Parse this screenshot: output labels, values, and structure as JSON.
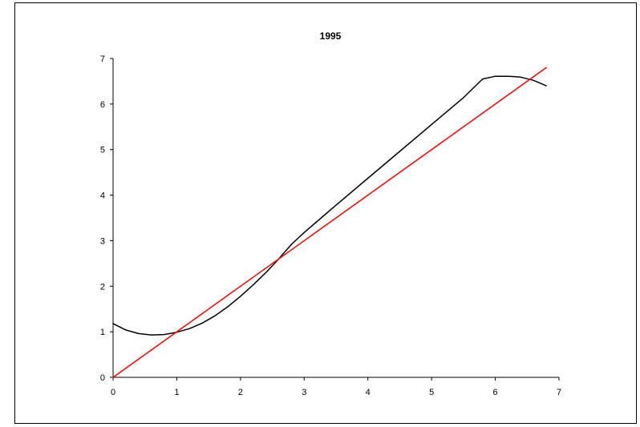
{
  "chart_data": {
    "type": "line",
    "title": "1995",
    "xlabel": "",
    "ylabel": "",
    "xlim": [
      0,
      7
    ],
    "ylim": [
      0,
      7
    ],
    "xticks": [
      0,
      1,
      2,
      3,
      4,
      5,
      6,
      7
    ],
    "yticks": [
      0,
      1,
      2,
      3,
      4,
      5,
      6,
      7
    ],
    "grid": false,
    "legend": "none",
    "series": [
      {
        "color": "#000000",
        "x": [
          0,
          0.2,
          0.4,
          0.6,
          0.8,
          1.0,
          1.2,
          1.4,
          1.6,
          1.8,
          2.0,
          2.2,
          2.4,
          2.6,
          2.8,
          3.0,
          3.2,
          3.5,
          4.0,
          4.5,
          5.0,
          5.5,
          5.8,
          6.0,
          6.2,
          6.4,
          6.6,
          6.8
        ],
        "y": [
          1.18,
          1.04,
          0.96,
          0.93,
          0.94,
          0.99,
          1.07,
          1.19,
          1.35,
          1.55,
          1.78,
          2.03,
          2.3,
          2.6,
          2.92,
          3.18,
          3.42,
          3.78,
          4.37,
          4.96,
          5.55,
          6.14,
          6.55,
          6.61,
          6.61,
          6.59,
          6.52,
          6.4
        ]
      },
      {
        "color": "#ff0000",
        "x": [
          0,
          6.8
        ],
        "y": [
          0,
          6.8
        ]
      }
    ]
  }
}
